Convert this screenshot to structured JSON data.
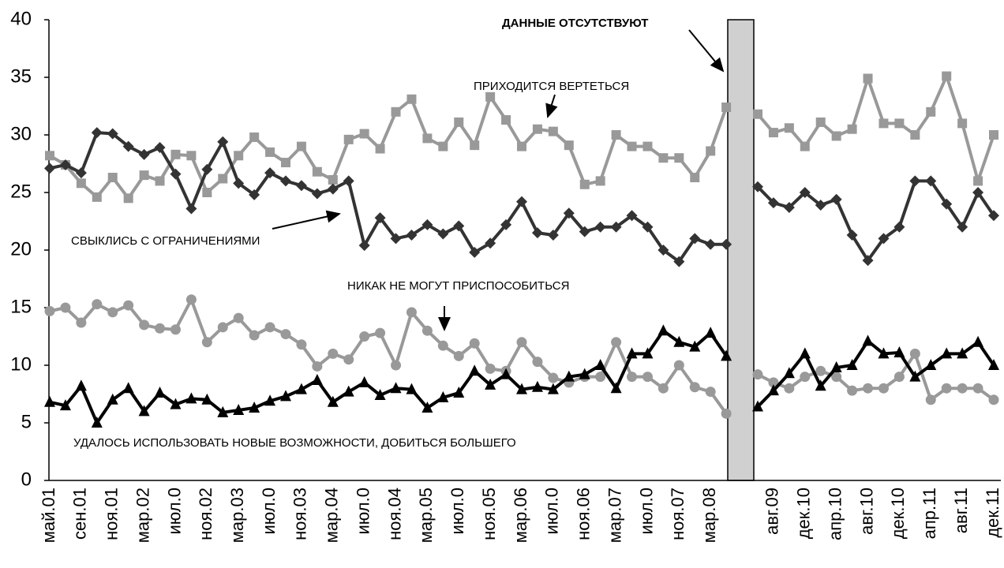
{
  "chart_data": {
    "type": "line",
    "annotation": "ДАННЫЕ  ОТСУТСТВУЮТ",
    "categories": [
      "май.01",
      null,
      "сен.01",
      null,
      "ноя.01",
      null,
      "мар.02",
      null,
      "июл.0",
      null,
      "ноя.02",
      null,
      "мар.03",
      null,
      "июл.0",
      null,
      "ноя.03",
      null,
      "мар.04",
      null,
      "июл.0",
      null,
      "ноя.04",
      null,
      "мар.05",
      null,
      "июл.0",
      null,
      "ноя.05",
      null,
      "мар.06",
      null,
      "июл.0",
      null,
      "ноя.06",
      null,
      "мар.07",
      null,
      "июл.0",
      null,
      "ноя.07",
      null,
      "мар.08",
      null,
      null,
      null,
      "авг.09",
      null,
      "дек.10",
      null,
      "апр.10",
      null,
      "авг.10",
      null,
      "дек.10",
      null,
      "апр.11",
      null,
      "авг.11",
      null,
      "дек.11"
    ],
    "ylim": [
      0,
      40
    ],
    "yticks": [
      0,
      5,
      10,
      15,
      20,
      25,
      30,
      35,
      40
    ],
    "grid": false,
    "series": [
      {
        "name": "ПРИХОДИТСЯ ВЕРТЕТЬСЯ",
        "color": "#999999",
        "marker": "square",
        "values": [
          28.2,
          27.4,
          25.8,
          24.6,
          26.3,
          24.5,
          26.5,
          26.0,
          28.3,
          28.2,
          25.0,
          26.2,
          28.2,
          29.8,
          28.5,
          27.6,
          29.0,
          26.8,
          26.1,
          29.6,
          30.1,
          28.8,
          32.0,
          33.1,
          29.7,
          29.0,
          31.1,
          29.1,
          33.3,
          31.3,
          29.0,
          30.5,
          30.3,
          29.1,
          25.7,
          26.0,
          30.0,
          29.0,
          29.0,
          28.0,
          28.0,
          26.3,
          28.6,
          32.4,
          null,
          31.8,
          30.2,
          30.6,
          29.0,
          31.1,
          29.9,
          30.5,
          34.9,
          31.0,
          31.0,
          30.0,
          32.0,
          35.1,
          31.0,
          26.0,
          30.0
        ]
      },
      {
        "name": "СВЫКЛИСЬ С ОГРАНИЧЕНИЯМИ",
        "color": "#333333",
        "marker": "diamond",
        "values": [
          27.1,
          27.4,
          26.7,
          30.2,
          30.1,
          29.0,
          28.3,
          28.9,
          26.6,
          23.6,
          27.0,
          29.4,
          25.8,
          24.8,
          26.7,
          26.0,
          25.6,
          24.9,
          25.3,
          26.0,
          20.4,
          22.8,
          21.0,
          21.3,
          22.2,
          21.4,
          22.1,
          19.8,
          20.6,
          22.2,
          24.2,
          21.5,
          21.3,
          23.2,
          21.6,
          22.0,
          22.0,
          23.0,
          22.0,
          20.0,
          19.0,
          21.0,
          20.5,
          20.5,
          null,
          25.5,
          24.1,
          23.7,
          25.0,
          23.9,
          24.4,
          21.3,
          19.1,
          21.0,
          22.0,
          26.0,
          26.0,
          24.0,
          22.0,
          25.0,
          23.0
        ]
      },
      {
        "name": "НИКАК НЕ МОГУТ ПРИСПОСОБИТЬСЯ",
        "color": "#999999",
        "marker": "circle",
        "values": [
          14.7,
          15.0,
          13.7,
          15.3,
          14.6,
          15.2,
          13.5,
          13.2,
          13.1,
          15.7,
          12.0,
          13.3,
          14.1,
          12.6,
          13.3,
          12.7,
          11.8,
          9.9,
          11.0,
          10.5,
          12.5,
          12.8,
          10.0,
          14.6,
          13.0,
          11.7,
          10.8,
          11.9,
          9.7,
          9.5,
          12.0,
          10.3,
          8.9,
          8.5,
          9.0,
          9.0,
          12.0,
          9.0,
          9.0,
          8.0,
          10.0,
          8.1,
          7.7,
          5.8,
          null,
          9.2,
          8.5,
          8.0,
          9.0,
          9.5,
          9.0,
          7.8,
          8.0,
          8.0,
          9.0,
          11.0,
          7.0,
          8.0,
          8.0,
          8.0,
          7.0
        ]
      },
      {
        "name": "УДАЛОСЬ ИСПОЛЬЗОВАТЬ НОВЫЕ ВОЗМОЖНОСТИ, ДОБИТЬСЯ БОЛЬШЕГО",
        "color": "#000000",
        "marker": "triangle",
        "values": [
          6.8,
          6.5,
          8.2,
          5.0,
          7.0,
          8.0,
          6.0,
          7.6,
          6.6,
          7.1,
          7.0,
          5.9,
          6.1,
          6.3,
          6.9,
          7.3,
          7.9,
          8.7,
          6.8,
          7.7,
          8.5,
          7.4,
          8.0,
          7.9,
          6.3,
          7.2,
          7.6,
          9.5,
          8.3,
          9.2,
          7.9,
          8.1,
          7.9,
          9.0,
          9.2,
          10.0,
          8.0,
          11.0,
          11.0,
          13.0,
          12.0,
          11.6,
          12.8,
          10.8,
          null,
          6.4,
          7.8,
          9.3,
          11.0,
          8.2,
          9.8,
          10.0,
          12.1,
          11.0,
          11.1,
          9.0,
          10.0,
          11.0,
          11.0,
          12.0,
          10.0
        ]
      }
    ]
  }
}
